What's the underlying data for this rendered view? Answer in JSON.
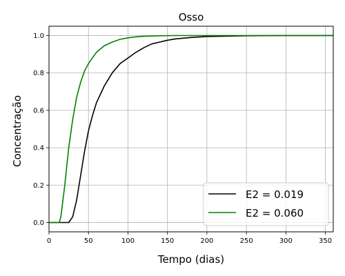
{
  "chart_data": {
    "type": "line",
    "title": "Osso",
    "xlabel": "Tempo (dias)",
    "ylabel": "Concentração",
    "xlim": [
      0,
      360
    ],
    "ylim": [
      -0.05,
      1.05
    ],
    "xticks": [
      0,
      50,
      100,
      150,
      200,
      250,
      300,
      350
    ],
    "yticks": [
      "0.0",
      "0.2",
      "0.4",
      "0.6",
      "0.8",
      "1.0"
    ],
    "grid": true,
    "legend_position": "lower-right",
    "series": [
      {
        "name": "E2 = 0.019",
        "color": "#000000",
        "x": [
          0,
          10,
          20,
          25,
          30,
          35,
          40,
          45,
          50,
          55,
          60,
          70,
          80,
          90,
          100,
          110,
          120,
          130,
          140,
          150,
          160,
          180,
          200,
          250,
          300,
          360
        ],
        "y": [
          0.0,
          0.0,
          0.0,
          0.0,
          0.03,
          0.12,
          0.25,
          0.38,
          0.49,
          0.57,
          0.64,
          0.73,
          0.8,
          0.85,
          0.88,
          0.91,
          0.935,
          0.955,
          0.965,
          0.975,
          0.982,
          0.99,
          0.995,
          0.999,
          1.0,
          1.0
        ]
      },
      {
        "name": "E2 = 0.060",
        "color": "#008000",
        "x": [
          0,
          10,
          13,
          15,
          20,
          25,
          30,
          35,
          40,
          45,
          50,
          55,
          60,
          70,
          80,
          90,
          100,
          110,
          120,
          140,
          160,
          200,
          250,
          300,
          360
        ],
        "y": [
          0.0,
          0.0,
          0.0,
          0.03,
          0.2,
          0.4,
          0.55,
          0.67,
          0.75,
          0.81,
          0.85,
          0.88,
          0.91,
          0.945,
          0.965,
          0.98,
          0.988,
          0.993,
          0.996,
          0.999,
          1.0,
          1.0,
          1.0,
          1.0,
          1.0
        ]
      }
    ]
  }
}
